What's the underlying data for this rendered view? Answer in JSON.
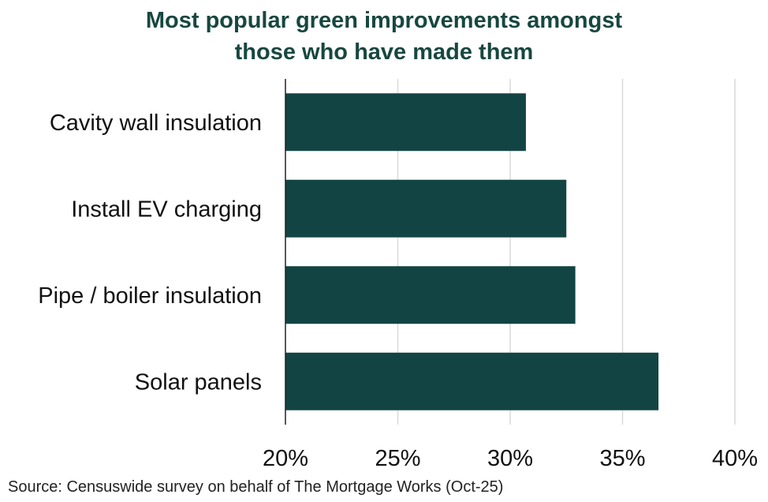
{
  "chart_data": {
    "type": "bar",
    "orientation": "horizontal",
    "title_lines": [
      "Most popular green improvements amongst",
      "those who have made them"
    ],
    "categories": [
      "Cavity wall insulation",
      "Install EV charging",
      "Pipe / boiler insulation",
      "Solar panels"
    ],
    "values": [
      30.7,
      32.5,
      32.9,
      36.6
    ],
    "xlim": [
      20,
      40
    ],
    "xticks": [
      20,
      25,
      30,
      35,
      40
    ],
    "xtick_labels": [
      "20%",
      "25%",
      "30%",
      "35%",
      "40%"
    ],
    "grid": "vertical",
    "bar_color": "#134444",
    "title_color": "#174740",
    "source": "Source: Censuswide survey on behalf of The Mortgage Works (Oct-25)"
  }
}
